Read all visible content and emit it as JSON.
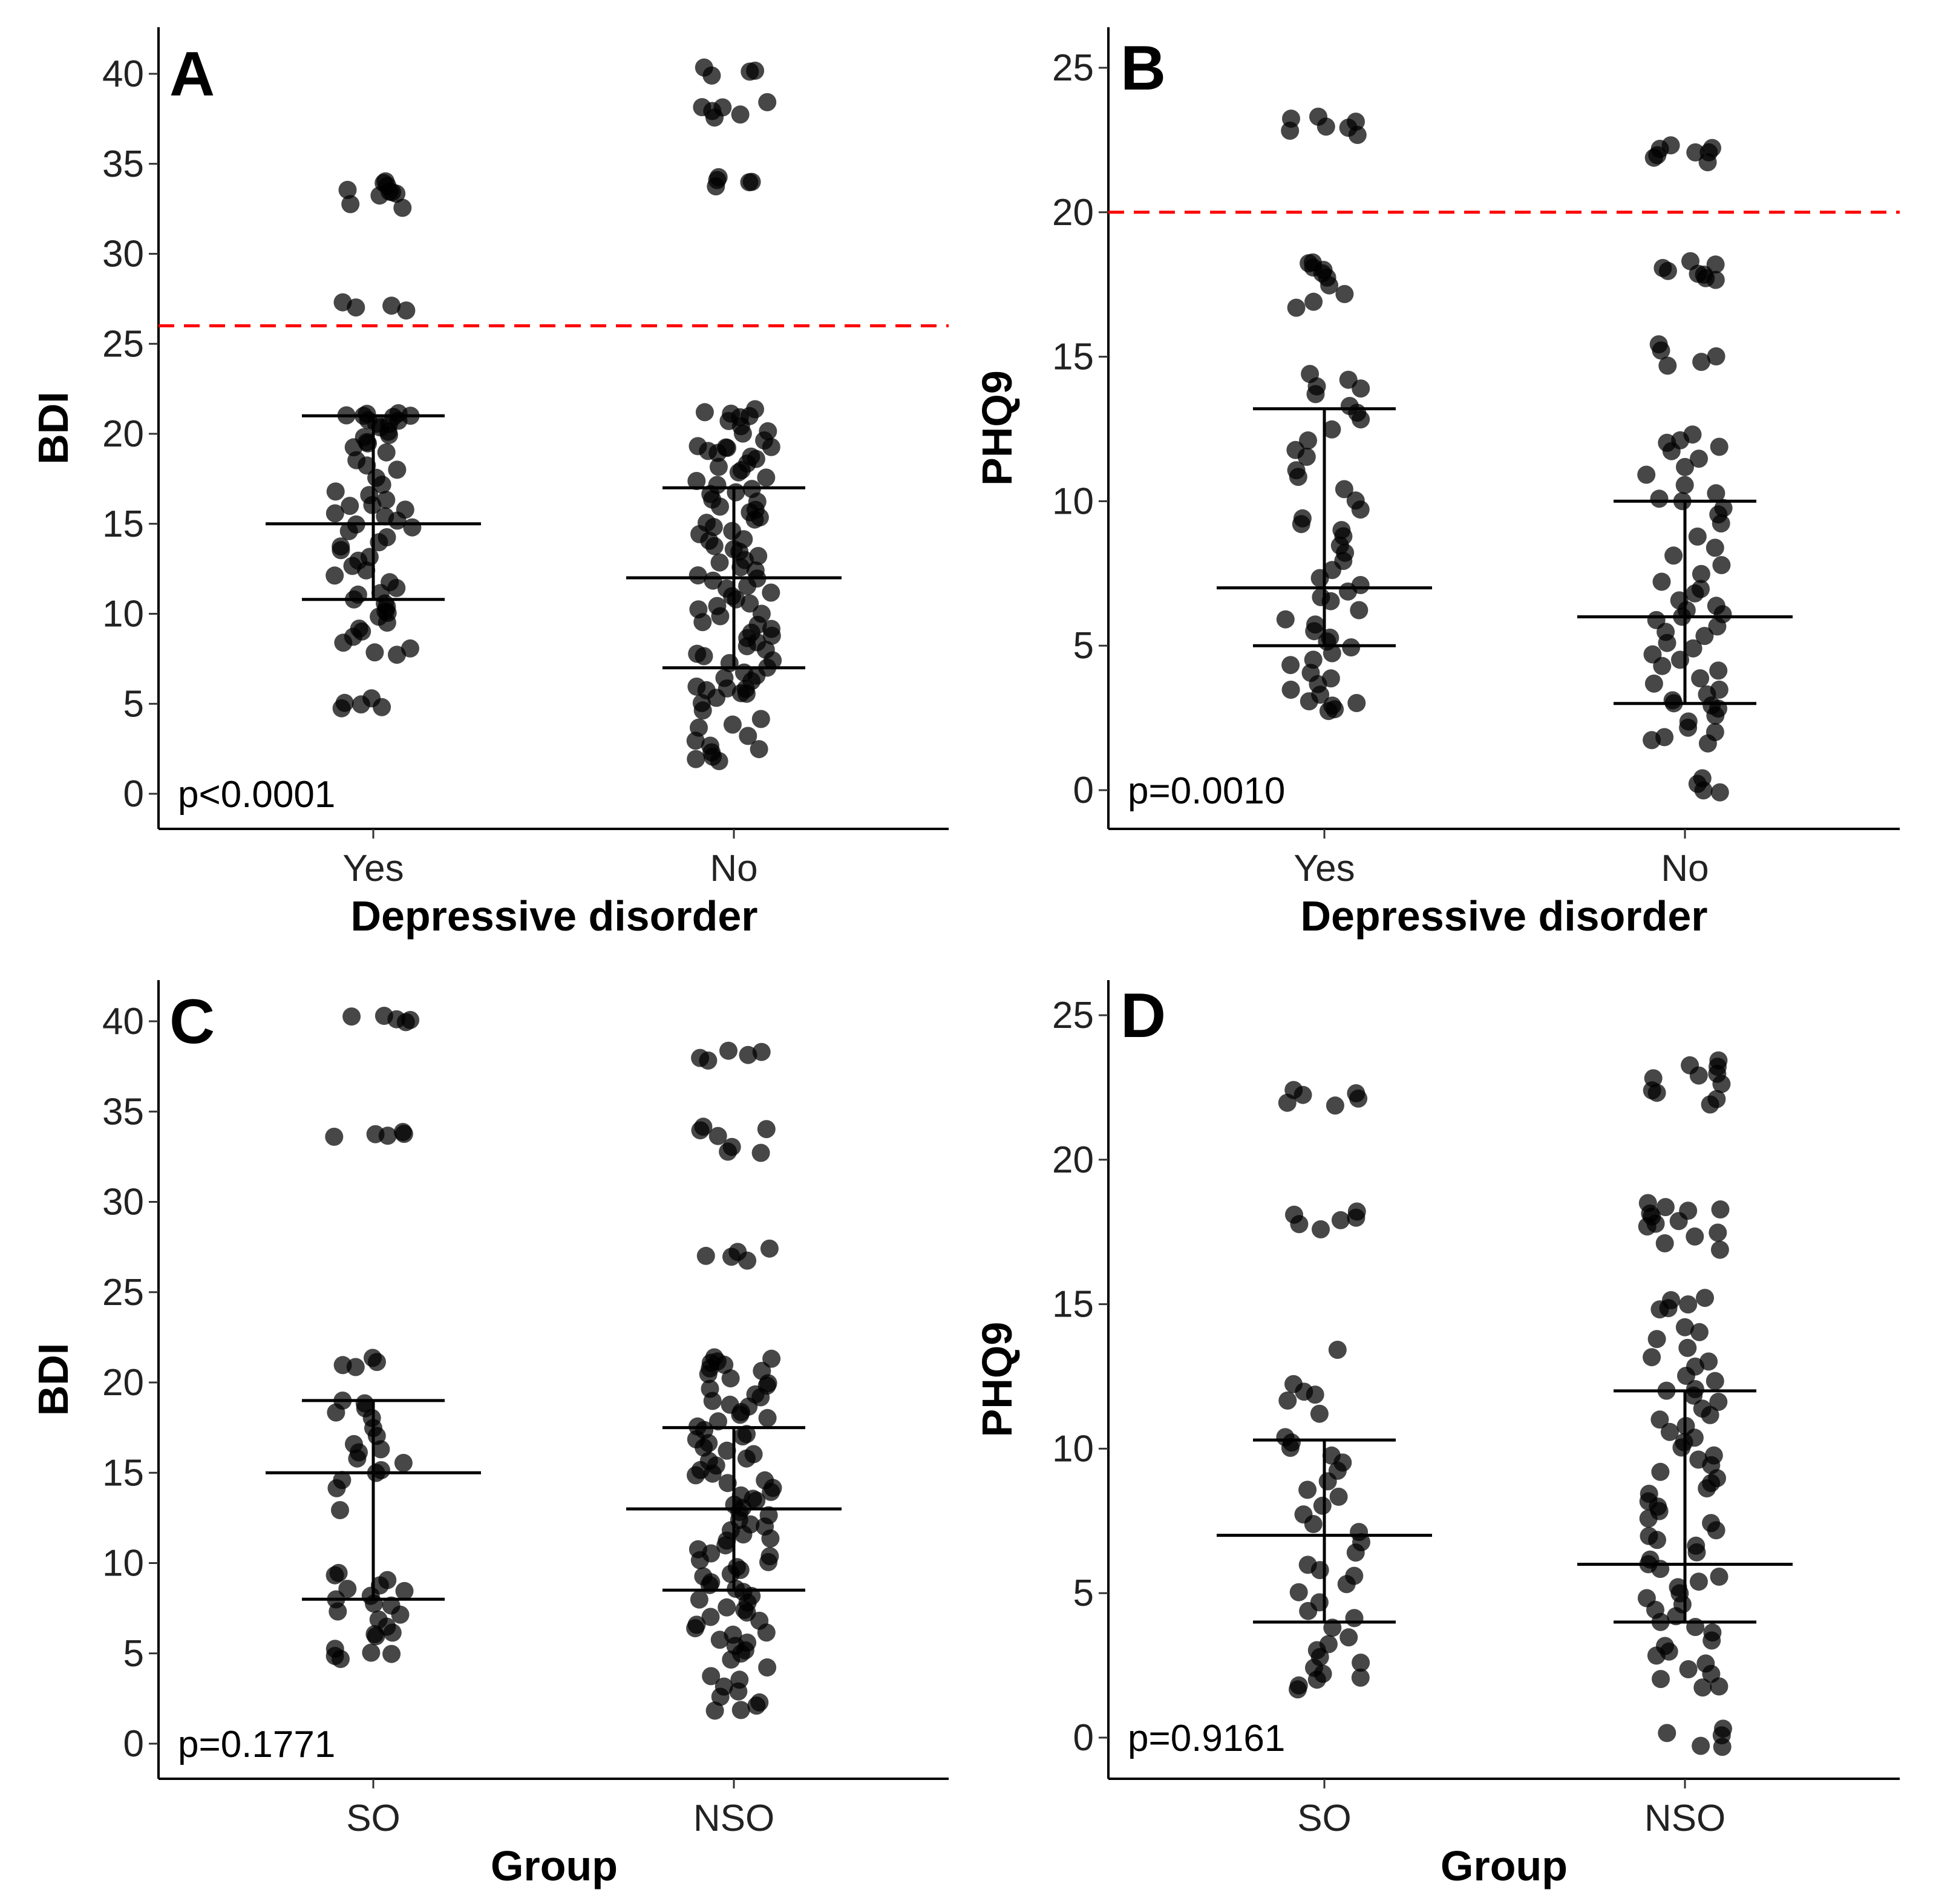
{
  "chart_data": [
    {
      "type": "scatter",
      "panel": "A",
      "xlabel": "Depressive disorder",
      "ylabel": "BDI",
      "categories": [
        "Yes",
        "No"
      ],
      "ylim": [
        0,
        40
      ],
      "yticks": [
        0,
        5,
        10,
        15,
        20,
        25,
        30,
        35,
        40
      ],
      "p_value": "p<0.0001",
      "threshold": 26,
      "threshold_color": "#ff0000",
      "summary": [
        {
          "category": "Yes",
          "median": 15,
          "q1": 10.8,
          "q3": 21
        },
        {
          "category": "No",
          "median": 12,
          "q1": 7,
          "q3": 17
        }
      ],
      "series": [
        {
          "name": "Yes",
          "values": [
            34,
            34,
            33.8,
            33.6,
            33.5,
            33.4,
            33.3,
            33.2,
            32.8,
            32.6,
            27.3,
            27.1,
            27,
            26.9,
            21.1,
            21.1,
            21,
            21,
            21,
            20.9,
            20.8,
            20.7,
            20.6,
            20.5,
            20.3,
            20.1,
            19.9,
            19.8,
            19.6,
            19.4,
            19.2,
            18.9,
            18.5,
            18.2,
            18,
            17.6,
            17.2,
            16.8,
            16.6,
            16.3,
            16.1,
            16,
            15.8,
            15.6,
            15.4,
            15.2,
            15,
            14.8,
            14.6,
            14.3,
            14,
            13.8,
            13.5,
            13.2,
            13,
            12.7,
            12.4,
            12.1,
            11.8,
            11.5,
            11.2,
            11,
            10.8,
            10.6,
            10.4,
            10.2,
            10,
            9.8,
            9.5,
            9.2,
            9,
            8.7,
            8.4,
            8.1,
            7.9,
            7.7,
            5.3,
            5.1,
            4.9,
            4.8,
            4.7
          ]
        },
        {
          "name": "No",
          "values": [
            40.3,
            40.2,
            40.1,
            39.9,
            38.4,
            38.2,
            38.2,
            37.9,
            37.8,
            37.6,
            34.3,
            34.1,
            34,
            34,
            33.7,
            21.3,
            21.2,
            21.1,
            21,
            20.9,
            20.7,
            20.4,
            20.2,
            20,
            19.6,
            19.3,
            19.3,
            19.2,
            19.2,
            19.1,
            19,
            18.8,
            18.6,
            18.4,
            18.2,
            18,
            17.8,
            17.6,
            17.4,
            17.2,
            17,
            16.8,
            16.6,
            16.4,
            16.2,
            16,
            15.8,
            15.6,
            15.4,
            15.2,
            15,
            14.8,
            14.6,
            14.4,
            14.2,
            14,
            13.8,
            13.6,
            13.4,
            13.2,
            13,
            12.8,
            12.6,
            12.4,
            12.2,
            12,
            11.8,
            11.6,
            11.4,
            11.2,
            11,
            10.8,
            10.6,
            10.4,
            10.2,
            10,
            9.8,
            9.6,
            9.4,
            9.2,
            9,
            8.8,
            8.6,
            8.4,
            8.2,
            8,
            7.8,
            7.6,
            7.4,
            7.2,
            7,
            6.8,
            6.6,
            6.4,
            6.2,
            6,
            5.9,
            5.8,
            5.7,
            5.6,
            5.5,
            5.3,
            5,
            4.6,
            4.1,
            3.9,
            3.7,
            3.2,
            2.9,
            2.7,
            2.5,
            2.3,
            2.1,
            1.9,
            1.8
          ]
        }
      ]
    },
    {
      "type": "scatter",
      "panel": "B",
      "xlabel": "Depressive disorder",
      "ylabel": "PHQ9",
      "categories": [
        "Yes",
        "No"
      ],
      "ylim": [
        0,
        25
      ],
      "yticks": [
        0,
        5,
        10,
        15,
        20,
        25
      ],
      "p_value": "p=0.0010",
      "threshold": 20,
      "threshold_color": "#ff0000",
      "summary": [
        {
          "category": "Yes",
          "median": 7,
          "q1": 5,
          "q3": 13.2
        },
        {
          "category": "No",
          "median": 6,
          "q1": 3,
          "q3": 10
        }
      ],
      "series": [
        {
          "name": "Yes",
          "values": [
            23.3,
            23.2,
            23.1,
            23,
            22.9,
            22.8,
            22.7,
            18.3,
            18.2,
            18.1,
            18,
            17.9,
            17.7,
            17.5,
            17.2,
            16.9,
            16.7,
            14.4,
            14.2,
            14,
            13.9,
            13.7,
            13.3,
            13.1,
            12.8,
            12.5,
            12.1,
            11.8,
            11.5,
            11.1,
            10.8,
            10.4,
            10,
            9.7,
            9.4,
            9.2,
            9,
            8.8,
            8.5,
            8.2,
            7.9,
            7.6,
            7.3,
            7.1,
            6.9,
            6.7,
            6.5,
            6.2,
            5.9,
            5.7,
            5.5,
            5.3,
            5.1,
            4.9,
            4.7,
            4.5,
            4.3,
            4.1,
            3.9,
            3.7,
            3.5,
            3.3,
            3.1,
            3,
            2.9,
            2.8,
            2.7
          ]
        },
        {
          "name": "No",
          "values": [
            22.3,
            22.2,
            22.2,
            22.1,
            22.1,
            22,
            21.9,
            21.7,
            18.3,
            18.2,
            18.1,
            18,
            17.9,
            17.8,
            17.7,
            17.7,
            15.4,
            15.2,
            15,
            14.8,
            14.7,
            12.3,
            12.1,
            12,
            11.9,
            11.7,
            11.5,
            11.2,
            10.9,
            10.6,
            10.3,
            10.1,
            10,
            9.8,
            9.5,
            9.2,
            8.8,
            8.4,
            8.1,
            7.8,
            7.5,
            7.2,
            7,
            6.8,
            6.6,
            6.4,
            6.2,
            6.1,
            6,
            5.9,
            5.7,
            5.5,
            5.3,
            5.1,
            4.9,
            4.7,
            4.5,
            4.3,
            4.1,
            3.9,
            3.7,
            3.5,
            3.3,
            3.1,
            3,
            2.9,
            2.8,
            2.6,
            2.4,
            2.2,
            2,
            1.8,
            1.7,
            1.6,
            0.4,
            0.2,
            0,
            -0.1
          ]
        }
      ]
    },
    {
      "type": "scatter",
      "panel": "C",
      "xlabel": "Group",
      "ylabel": "BDI",
      "categories": [
        "SO",
        "NSO"
      ],
      "ylim": [
        0,
        40
      ],
      "yticks": [
        0,
        5,
        10,
        15,
        20,
        25,
        30,
        35,
        40
      ],
      "p_value": "p=0.1771",
      "threshold": null,
      "summary": [
        {
          "category": "SO",
          "median": 15,
          "q1": 8,
          "q3": 19
        },
        {
          "category": "NSO",
          "median": 13,
          "q1": 8.5,
          "q3": 17.5
        }
      ],
      "series": [
        {
          "name": "SO",
          "values": [
            40.3,
            40.2,
            40.1,
            40.1,
            40,
            33.9,
            33.8,
            33.7,
            33.7,
            33.6,
            21.3,
            21.1,
            21,
            20.9,
            19,
            18.8,
            18.6,
            18.3,
            18,
            17.5,
            17,
            16.6,
            16.3,
            16.1,
            15.8,
            15.5,
            15.2,
            15,
            14.6,
            14.2,
            12.9,
            9.5,
            9.3,
            9,
            8.8,
            8.6,
            8.4,
            8.2,
            8,
            7.8,
            7.6,
            7.3,
            7.1,
            6.9,
            6.5,
            6.2,
            6,
            5.9,
            5.2,
            5,
            4.9,
            4.8,
            4.7
          ]
        },
        {
          "name": "NSO",
          "values": [
            38.4,
            38.3,
            38.1,
            38,
            37.8,
            34.2,
            34,
            33.9,
            33.7,
            33,
            32.8,
            32.7,
            27.4,
            27.2,
            27,
            26.9,
            26.8,
            21.4,
            21.3,
            21.2,
            21.1,
            21,
            20.8,
            20.6,
            20.4,
            20.2,
            20,
            19.8,
            19.6,
            19.4,
            19.2,
            19,
            18.8,
            18.6,
            18.4,
            18.2,
            18,
            17.8,
            17.6,
            17.4,
            17.2,
            17,
            16.8,
            16.6,
            16.4,
            16.2,
            16,
            15.8,
            15.6,
            15.4,
            15.2,
            15,
            14.8,
            14.6,
            14.4,
            14.2,
            14,
            13.8,
            13.6,
            13.4,
            13.2,
            13,
            12.8,
            12.6,
            12.4,
            12.2,
            12,
            11.8,
            11.6,
            11.4,
            11.2,
            11,
            10.8,
            10.6,
            10.4,
            10.2,
            10,
            9.8,
            9.6,
            9.4,
            9.2,
            9,
            8.8,
            8.6,
            8.4,
            8.2,
            8,
            7.8,
            7.6,
            7.4,
            7.2,
            7,
            6.8,
            6.6,
            6.4,
            6.2,
            6,
            5.8,
            5.6,
            5.4,
            5.2,
            5,
            4.6,
            4.2,
            3.8,
            3.5,
            3.2,
            2.9,
            2.6,
            2.3,
            2.1,
            1.9,
            1.8
          ]
        }
      ]
    },
    {
      "type": "scatter",
      "panel": "D",
      "xlabel": "Group",
      "ylabel": "PHQ9",
      "categories": [
        "SO",
        "NSO"
      ],
      "ylim": [
        0,
        25
      ],
      "yticks": [
        0,
        5,
        10,
        15,
        20,
        25
      ],
      "p_value": "p=0.9161",
      "threshold": null,
      "summary": [
        {
          "category": "SO",
          "median": 7,
          "q1": 4,
          "q3": 10.3
        },
        {
          "category": "NSO",
          "median": 6,
          "q1": 4,
          "q3": 12
        }
      ],
      "series": [
        {
          "name": "SO",
          "values": [
            22.4,
            22.3,
            22.2,
            22.1,
            22,
            21.9,
            18.2,
            18.1,
            18,
            17.9,
            17.8,
            17.6,
            13.4,
            12.2,
            12,
            11.9,
            11.7,
            11.2,
            10.4,
            10.2,
            10,
            9.8,
            9.5,
            9.2,
            8.9,
            8.6,
            8.3,
            8,
            7.7,
            7.4,
            7.1,
            6.8,
            6.4,
            6,
            5.8,
            5.6,
            5.3,
            5,
            4.7,
            4.4,
            4.1,
            3.8,
            3.5,
            3.2,
            3,
            2.8,
            2.6,
            2.4,
            2.2,
            2.1,
            2,
            1.8,
            1.7
          ]
        },
        {
          "name": "NSO",
          "values": [
            23.4,
            23.3,
            23.2,
            23,
            22.9,
            22.8,
            22.6,
            22.4,
            22.3,
            22.1,
            21.9,
            18.5,
            18.4,
            18.3,
            18.2,
            18.1,
            18,
            17.9,
            17.8,
            17.7,
            17.5,
            17.3,
            17.1,
            16.9,
            15.2,
            15.1,
            15,
            14.9,
            14.8,
            14.2,
            14,
            13.8,
            13.5,
            13.2,
            13,
            12.8,
            12.5,
            12.3,
            12.1,
            12,
            11.8,
            11.6,
            11.4,
            11.2,
            11,
            10.8,
            10.6,
            10.4,
            10.2,
            10,
            9.8,
            9.6,
            9.4,
            9.2,
            9,
            8.8,
            8.6,
            8.4,
            8.2,
            8,
            7.8,
            7.6,
            7.4,
            7.2,
            7,
            6.8,
            6.6,
            6.4,
            6.2,
            6,
            5.8,
            5.6,
            5.4,
            5.2,
            5,
            4.8,
            4.6,
            4.4,
            4.2,
            4,
            3.8,
            3.6,
            3.4,
            3.2,
            3,
            2.8,
            2.6,
            2.4,
            2.2,
            2,
            1.8,
            1.7,
            0.3,
            0.2,
            0.1,
            -0.3,
            -0.3
          ]
        }
      ]
    }
  ]
}
